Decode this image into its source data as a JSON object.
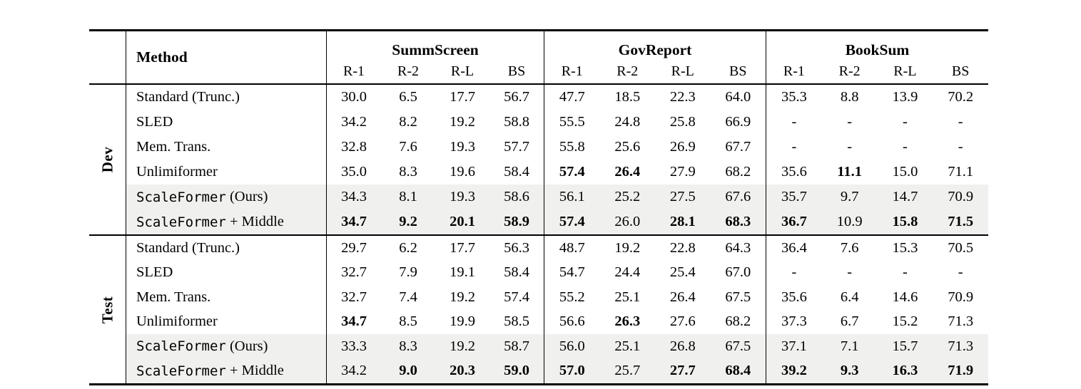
{
  "table": {
    "method_header": "Method",
    "shade_color": "#f0f0ee",
    "groups": [
      {
        "label": "SummScreen",
        "metrics": [
          "R-1",
          "R-2",
          "R-L",
          "BS"
        ]
      },
      {
        "label": "GovReport",
        "metrics": [
          "R-1",
          "R-2",
          "R-L",
          "BS"
        ]
      },
      {
        "label": "BookSum",
        "metrics": [
          "R-1",
          "R-2",
          "R-L",
          "BS"
        ]
      }
    ],
    "blocks": [
      {
        "label": "Dev",
        "rows": [
          {
            "method": "Standard (Trunc.)",
            "shaded": false,
            "bold": [],
            "values": [
              "30.0",
              "6.5",
              "17.7",
              "56.7",
              "47.7",
              "18.5",
              "22.3",
              "64.0",
              "35.3",
              "8.8",
              "13.9",
              "70.2"
            ]
          },
          {
            "method": "SLED",
            "shaded": false,
            "bold": [],
            "values": [
              "34.2",
              "8.2",
              "19.2",
              "58.8",
              "55.5",
              "24.8",
              "25.8",
              "66.9",
              "-",
              "-",
              "-",
              "-"
            ]
          },
          {
            "method": "Mem. Trans.",
            "shaded": false,
            "bold": [],
            "values": [
              "32.8",
              "7.6",
              "19.3",
              "57.7",
              "55.8",
              "25.6",
              "26.9",
              "67.7",
              "-",
              "-",
              "-",
              "-"
            ]
          },
          {
            "method": "Unlimiformer",
            "shaded": false,
            "bold": [
              4,
              5,
              9
            ],
            "values": [
              "35.0",
              "8.3",
              "19.6",
              "58.4",
              "57.4",
              "26.4",
              "27.9",
              "68.2",
              "35.6",
              "11.1",
              "15.0",
              "71.1"
            ]
          },
          {
            "method_mono": "ScaleFormer",
            "method_rest": " (Ours)",
            "shaded": true,
            "bold": [],
            "values": [
              "34.3",
              "8.1",
              "19.3",
              "58.6",
              "56.1",
              "25.2",
              "27.5",
              "67.6",
              "35.7",
              "9.7",
              "14.7",
              "70.9"
            ]
          },
          {
            "method_mono": "ScaleFormer",
            "method_rest": " + Middle",
            "shaded": true,
            "bold": [
              0,
              1,
              2,
              3,
              4,
              6,
              7,
              8,
              10,
              11
            ],
            "values": [
              "34.7",
              "9.2",
              "20.1",
              "58.9",
              "57.4",
              "26.0",
              "28.1",
              "68.3",
              "36.7",
              "10.9",
              "15.8",
              "71.5"
            ]
          }
        ]
      },
      {
        "label": "Test",
        "rows": [
          {
            "method": "Standard (Trunc.)",
            "shaded": false,
            "bold": [],
            "values": [
              "29.7",
              "6.2",
              "17.7",
              "56.3",
              "48.7",
              "19.2",
              "22.8",
              "64.3",
              "36.4",
              "7.6",
              "15.3",
              "70.5"
            ]
          },
          {
            "method": "SLED",
            "shaded": false,
            "bold": [],
            "values": [
              "32.7",
              "7.9",
              "19.1",
              "58.4",
              "54.7",
              "24.4",
              "25.4",
              "67.0",
              "-",
              "-",
              "-",
              "-"
            ]
          },
          {
            "method": "Mem. Trans.",
            "shaded": false,
            "bold": [],
            "values": [
              "32.7",
              "7.4",
              "19.2",
              "57.4",
              "55.2",
              "25.1",
              "26.4",
              "67.5",
              "35.6",
              "6.4",
              "14.6",
              "70.9"
            ]
          },
          {
            "method": "Unlimiformer",
            "shaded": false,
            "bold": [
              0,
              5
            ],
            "values": [
              "34.7",
              "8.5",
              "19.9",
              "58.5",
              "56.6",
              "26.3",
              "27.6",
              "68.2",
              "37.3",
              "6.7",
              "15.2",
              "71.3"
            ]
          },
          {
            "method_mono": "ScaleFormer",
            "method_rest": " (Ours)",
            "shaded": true,
            "bold": [],
            "values": [
              "33.3",
              "8.3",
              "19.2",
              "58.7",
              "56.0",
              "25.1",
              "26.8",
              "67.5",
              "37.1",
              "7.1",
              "15.7",
              "71.3"
            ]
          },
          {
            "method_mono": "ScaleFormer",
            "method_rest": " + Middle",
            "shaded": true,
            "bold": [
              1,
              2,
              3,
              4,
              6,
              7,
              8,
              9,
              10,
              11
            ],
            "values": [
              "34.2",
              "9.0",
              "20.3",
              "59.0",
              "57.0",
              "25.7",
              "27.7",
              "68.4",
              "39.2",
              "9.3",
              "16.3",
              "71.9"
            ]
          }
        ]
      }
    ]
  }
}
